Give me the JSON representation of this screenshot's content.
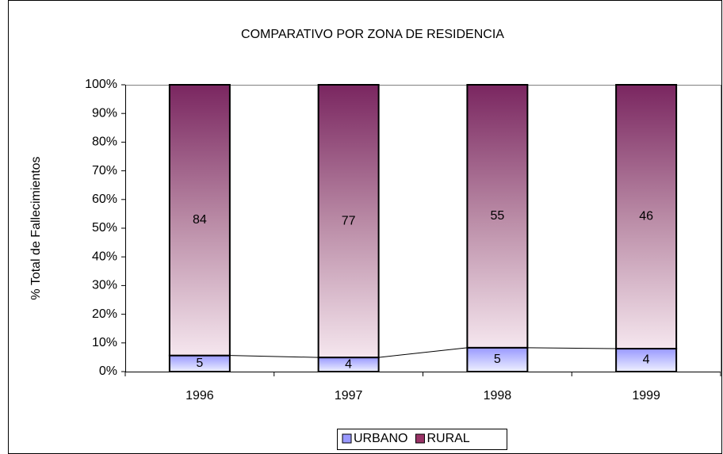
{
  "chart_data": {
    "type": "bar",
    "stacking": "percent",
    "title": "COMPARATIVO POR ZONA DE RESIDENCIA",
    "y_label": "% Total de Fallecimientos",
    "categories": [
      "1996",
      "1997",
      "1998",
      "1999"
    ],
    "series": [
      {
        "name": "URBANO",
        "color": "#9999ff",
        "values": [
          5,
          4,
          5,
          4
        ]
      },
      {
        "name": "RURAL",
        "color": "#993366",
        "values": [
          84,
          77,
          55,
          46
        ]
      }
    ],
    "ylim": [
      0,
      100
    ],
    "yticks": [
      {
        "value": 0,
        "label": "0%"
      },
      {
        "value": 10,
        "label": "10%"
      },
      {
        "value": 20,
        "label": "20%"
      },
      {
        "value": 30,
        "label": "30%"
      },
      {
        "value": 40,
        "label": "40%"
      },
      {
        "value": 50,
        "label": "50%"
      },
      {
        "value": 60,
        "label": "60%"
      },
      {
        "value": 70,
        "label": "70%"
      },
      {
        "value": 80,
        "label": "80%"
      },
      {
        "value": 90,
        "label": "90%"
      },
      {
        "value": 100,
        "label": "100%"
      }
    ],
    "legend": "bottom"
  }
}
